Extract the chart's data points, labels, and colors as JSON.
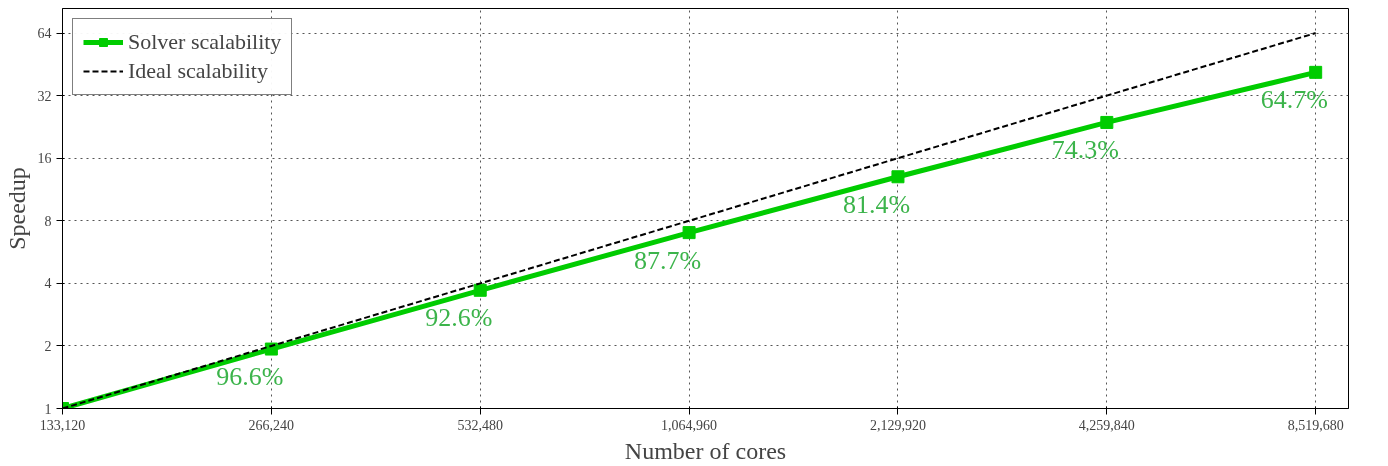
{
  "chart_data": {
    "type": "line",
    "xlabel": "Number of cores",
    "ylabel": "Speedup",
    "log": "xy",
    "grid": true,
    "legend": "top left",
    "x": [
      133120,
      266240,
      532480,
      1064960,
      2129920,
      4259840,
      8519680
    ],
    "xlim": [
      133120,
      9500000
    ],
    "ylim": [
      1,
      84
    ],
    "xticks": [
      {
        "value": 133120,
        "label": "133,120"
      },
      {
        "value": 266240,
        "label": "266,240"
      },
      {
        "value": 532480,
        "label": "532,480"
      },
      {
        "value": 1064960,
        "label": "1,064,960"
      },
      {
        "value": 2129920,
        "label": "2,129,920"
      },
      {
        "value": 4259840,
        "label": "4,259,840"
      },
      {
        "value": 8519680,
        "label": "8,519,680"
      }
    ],
    "yticks": [
      1,
      2,
      4,
      8,
      16,
      32,
      64
    ],
    "series": [
      {
        "name": "Solver scalability",
        "color": "#00cc00",
        "marker": "square",
        "line_style": "solid",
        "values": [
          1,
          1.932,
          3.704,
          7.016,
          13.024,
          23.776,
          41.408
        ]
      },
      {
        "name": "Ideal scalability",
        "color": "#000000",
        "marker": "none",
        "line_style": "dashed",
        "values": [
          1,
          2,
          4,
          8,
          16,
          32,
          64
        ]
      }
    ],
    "annotations": [
      {
        "text": "96.6%",
        "x": 266240,
        "y": 1.932
      },
      {
        "text": "92.6%",
        "x": 532480,
        "y": 3.704
      },
      {
        "text": "87.7%",
        "x": 1064960,
        "y": 7.016
      },
      {
        "text": "81.4%",
        "x": 2129920,
        "y": 13.024
      },
      {
        "text": "74.3%",
        "x": 4259840,
        "y": 23.776
      },
      {
        "text": "64.7%",
        "x": 8519680,
        "y": 41.408
      }
    ]
  }
}
